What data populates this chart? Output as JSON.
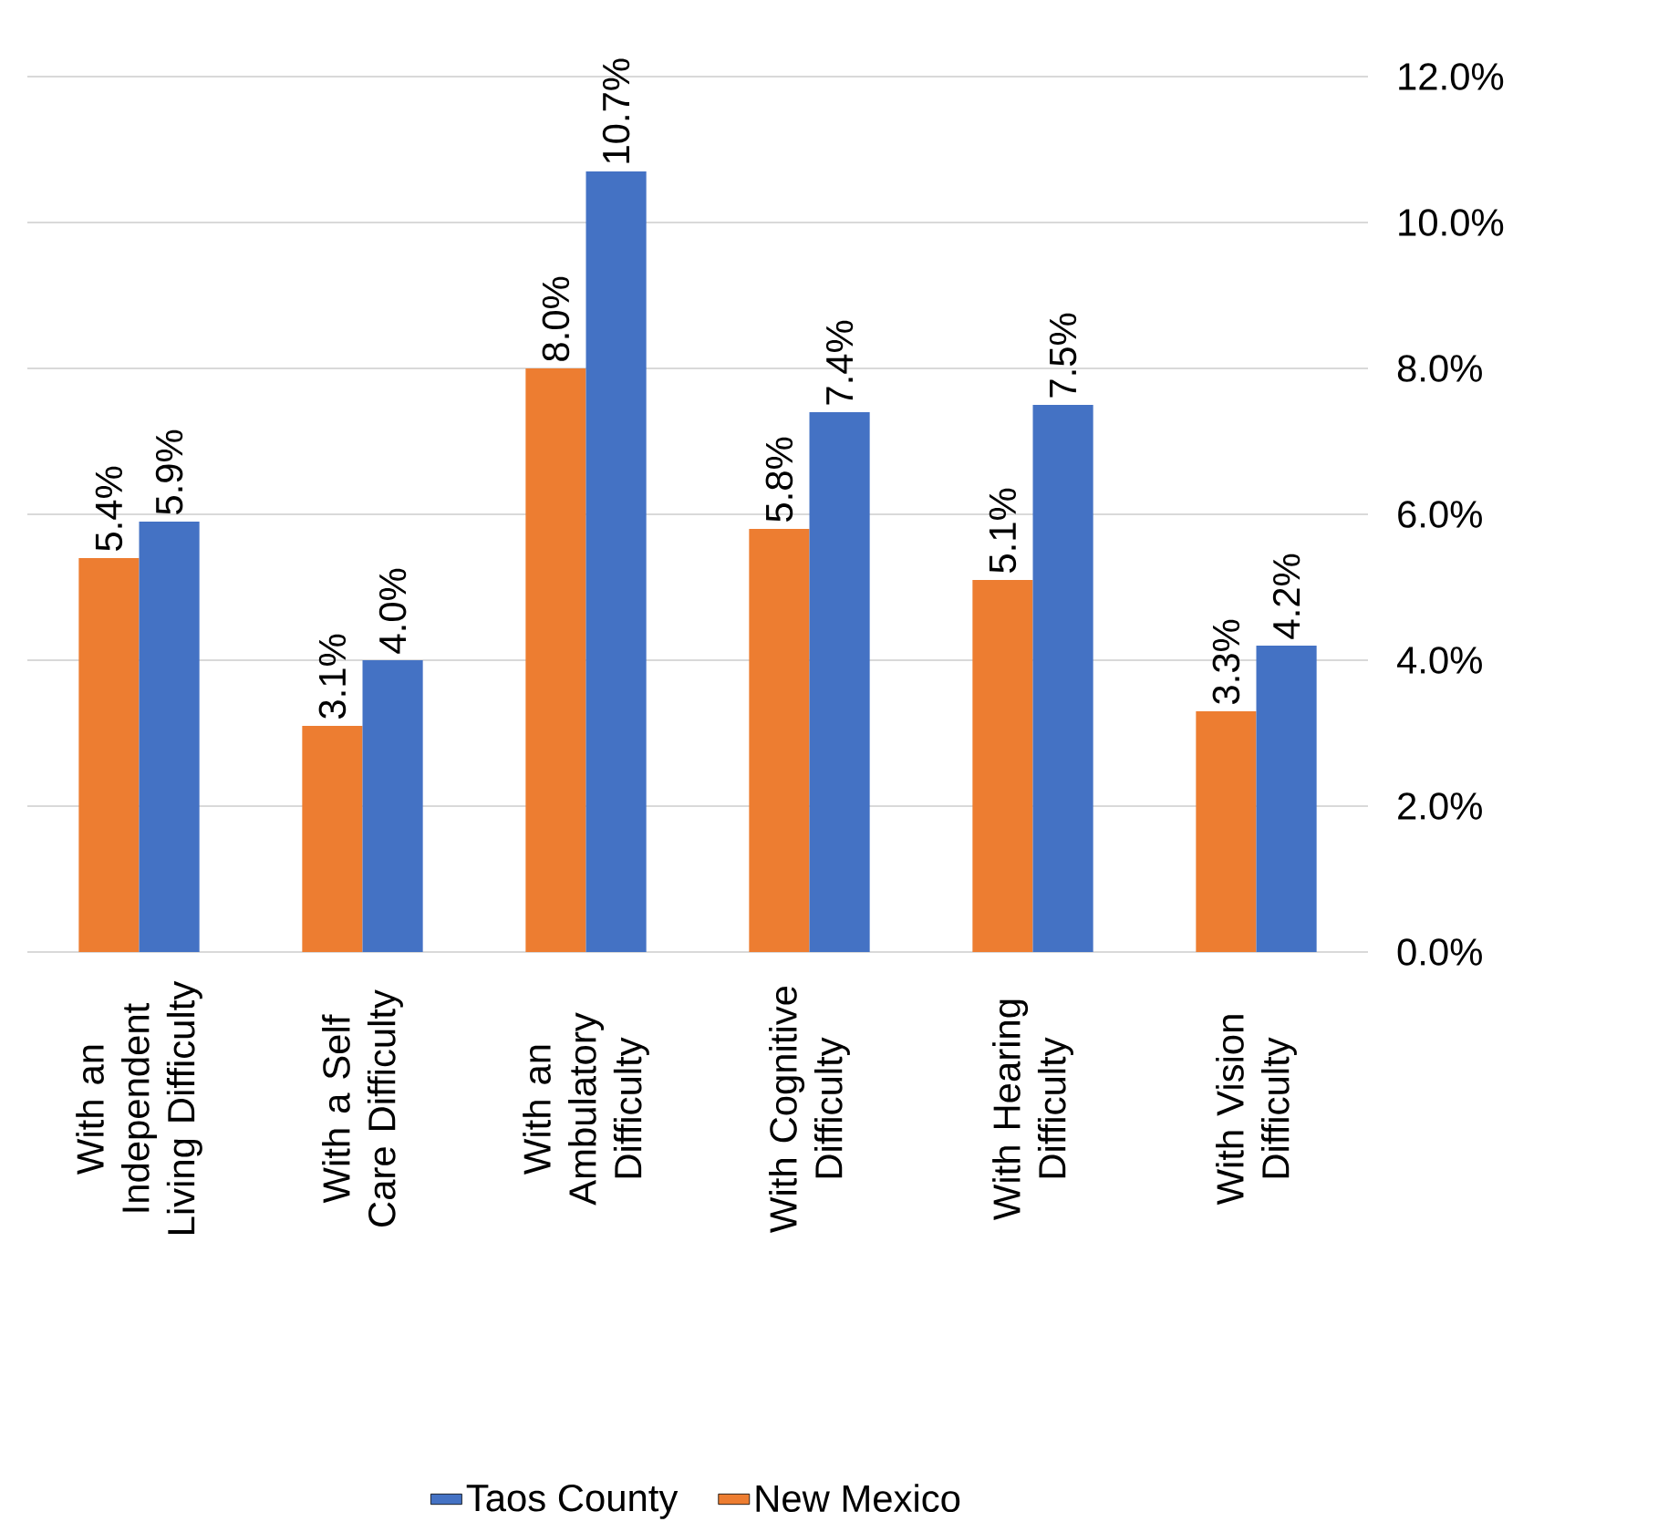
{
  "chart_data": {
    "type": "bar",
    "categories": [
      "With an Independent Living Difficulty",
      "With a Self Care Difficulty",
      "With an Ambulatory Difficulty",
      "With Cognitive Difficulty",
      "With Hearing Difficulty",
      "With Vision Difficulty"
    ],
    "series": [
      {
        "name": "New Mexico",
        "color": "#ed7d31",
        "values": [
          5.4,
          3.1,
          8.0,
          5.8,
          5.1,
          3.3
        ],
        "value_labels": [
          "5.4%",
          "3.1%",
          "8.0%",
          "5.8%",
          "5.1%",
          "3.3%"
        ]
      },
      {
        "name": "Taos County",
        "color": "#4472c4",
        "values": [
          5.9,
          4.0,
          10.7,
          7.4,
          7.5,
          4.2
        ],
        "value_labels": [
          "5.9%",
          "4.0%",
          "10.7%",
          "7.4%",
          "7.5%",
          "4.2%"
        ]
      }
    ],
    "ylim": [
      0,
      12
    ],
    "yticks": [
      {
        "value": 0,
        "label": "0.0%"
      },
      {
        "value": 2,
        "label": "2.0%"
      },
      {
        "value": 4,
        "label": "4.0%"
      },
      {
        "value": 6,
        "label": "6.0%"
      },
      {
        "value": 8,
        "label": "8.0%"
      },
      {
        "value": 10,
        "label": "10.0%"
      },
      {
        "value": 12,
        "label": "12.0%"
      }
    ],
    "grid": "y",
    "legend": "bottom"
  }
}
